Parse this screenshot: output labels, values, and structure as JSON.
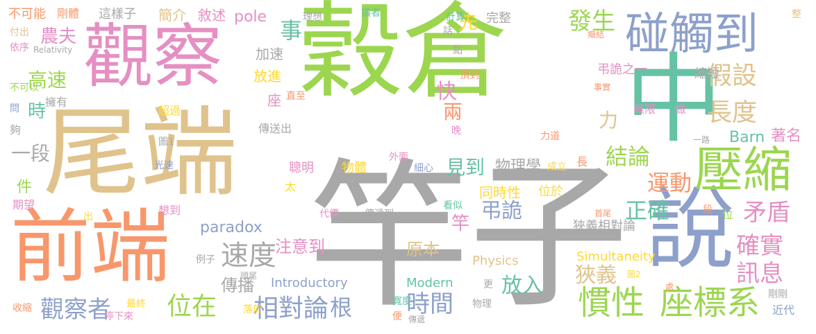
{
  "palette": {
    "green": "#9cd64f",
    "gray": "#a8a8a8",
    "tan": "#e0c38c",
    "pink": "#e58fc3",
    "orange": "#f8976b",
    "teal": "#66c2a5",
    "blue": "#8da0cb",
    "yellow": "#ffd92f"
  },
  "words": [
    {
      "text": "穀倉",
      "color": "green"
    },
    {
      "text": "竿子",
      "color": "gray"
    },
    {
      "text": "尾端",
      "color": "tan"
    },
    {
      "text": "前端",
      "color": "orange"
    },
    {
      "text": "觀察",
      "color": "pink"
    },
    {
      "text": "中",
      "color": "teal"
    },
    {
      "text": "碰觸到",
      "color": "blue"
    },
    {
      "text": "說",
      "color": "blue"
    },
    {
      "text": "壓縮",
      "color": "green"
    },
    {
      "text": "慣性",
      "color": "green"
    },
    {
      "text": "座標系",
      "color": "green"
    },
    {
      "text": "觀察者",
      "color": "blue"
    },
    {
      "text": "位在",
      "color": "green"
    },
    {
      "text": "相對論",
      "color": "blue"
    },
    {
      "text": "時間",
      "color": "blue"
    },
    {
      "text": "速度",
      "color": "gray"
    },
    {
      "text": "傳播",
      "color": "gray"
    },
    {
      "text": "注意到",
      "color": "pink"
    },
    {
      "text": "原本",
      "color": "tan"
    },
    {
      "text": "放入",
      "color": "teal"
    },
    {
      "text": "狹義",
      "color": "tan"
    },
    {
      "text": "根",
      "color": "blue"
    },
    {
      "text": "paradox",
      "color": "blue"
    },
    {
      "text": "pole",
      "color": "pink"
    },
    {
      "text": "高速",
      "color": "green"
    },
    {
      "text": "農夫",
      "color": "pink"
    },
    {
      "text": "時",
      "color": "teal"
    },
    {
      "text": "一段",
      "color": "gray"
    },
    {
      "text": "件",
      "color": "green"
    },
    {
      "text": "事",
      "color": "teal"
    },
    {
      "text": "先",
      "color": "yellow"
    },
    {
      "text": "發生",
      "color": "green"
    },
    {
      "text": "快",
      "color": "pink"
    },
    {
      "text": "兩",
      "color": "orange"
    },
    {
      "text": "假設",
      "color": "tan"
    },
    {
      "text": "長度",
      "color": "tan"
    },
    {
      "text": "力",
      "color": "tan"
    },
    {
      "text": "結論",
      "color": "green"
    },
    {
      "text": "運動",
      "color": "orange"
    },
    {
      "text": "正確",
      "color": "teal"
    },
    {
      "text": "矛盾",
      "color": "pink"
    },
    {
      "text": "確實",
      "color": "pink"
    },
    {
      "text": "訊息",
      "color": "pink"
    },
    {
      "text": "見到",
      "color": "teal"
    },
    {
      "text": "物理學",
      "color": "gray"
    },
    {
      "text": "弔詭",
      "color": "blue"
    },
    {
      "text": "竿",
      "color": "pink"
    },
    {
      "text": "同時性",
      "color": "yellow"
    },
    {
      "text": "位於",
      "color": "yellow"
    },
    {
      "text": "Barn",
      "color": "teal"
    },
    {
      "text": "著名",
      "color": "pink"
    },
    {
      "text": "Physics",
      "color": "tan"
    },
    {
      "text": "Simultaneity",
      "color": "yellow"
    },
    {
      "text": "Introductory",
      "color": "blue"
    },
    {
      "text": "Modern",
      "color": "teal"
    },
    {
      "text": "狹義相對論",
      "color": "gray"
    },
    {
      "text": "弔詭之一",
      "color": "pink"
    },
    {
      "text": "縮短",
      "color": "gray"
    },
    {
      "text": "不可能",
      "color": "orange"
    },
    {
      "text": "剛體",
      "color": "orange"
    },
    {
      "text": "這樣子",
      "color": "gray"
    },
    {
      "text": "簡介",
      "color": "tan"
    },
    {
      "text": "敘述",
      "color": "pink"
    },
    {
      "text": "付出",
      "color": "tan"
    },
    {
      "text": "依序",
      "color": "pink"
    },
    {
      "text": "Relativity",
      "color": "gray"
    },
    {
      "text": "加速",
      "color": "gray"
    },
    {
      "text": "放進",
      "color": "yellow"
    },
    {
      "text": "座",
      "color": "pink"
    },
    {
      "text": "擁有",
      "color": "gray"
    },
    {
      "text": "不可以",
      "color": "green"
    },
    {
      "text": "問",
      "color": "blue"
    },
    {
      "text": "夠",
      "color": "gray"
    },
    {
      "text": "超過",
      "color": "yellow"
    },
    {
      "text": "傳送出",
      "color": "gray"
    },
    {
      "text": "圖1",
      "color": "gray"
    },
    {
      "text": "光速",
      "color": "blue"
    },
    {
      "text": "期望",
      "color": "pink"
    },
    {
      "text": "想到",
      "color": "pink"
    },
    {
      "text": "出",
      "color": "yellow"
    },
    {
      "text": "例子",
      "color": "gray"
    },
    {
      "text": "頭尾",
      "color": "gray"
    },
    {
      "text": "代價",
      "color": "pink"
    },
    {
      "text": "傳遞到",
      "color": "gray"
    },
    {
      "text": "最終",
      "color": "yellow"
    },
    {
      "text": "停下來",
      "color": "pink"
    },
    {
      "text": "收縮",
      "color": "orange"
    },
    {
      "text": "落於",
      "color": "yellow"
    },
    {
      "text": "寬度",
      "color": "teal"
    },
    {
      "text": "便",
      "color": "orange"
    },
    {
      "text": "傳遞",
      "color": "gray"
    },
    {
      "text": "物理",
      "color": "gray"
    },
    {
      "text": "更",
      "color": "gray"
    },
    {
      "text": "看似",
      "color": "teal"
    },
    {
      "text": "聰明",
      "color": "pink"
    },
    {
      "text": "物體",
      "color": "yellow"
    },
    {
      "text": "外面",
      "color": "pink"
    },
    {
      "text": "細心",
      "color": "blue"
    },
    {
      "text": "太",
      "color": "yellow"
    },
    {
      "text": "理想",
      "color": "gray"
    },
    {
      "text": "讀者",
      "color": "teal"
    },
    {
      "text": "計算",
      "color": "teal"
    },
    {
      "text": "完整",
      "color": "gray"
    },
    {
      "text": "話",
      "color": "gray"
    },
    {
      "text": "點",
      "color": "gray"
    },
    {
      "text": "頂到",
      "color": "orange"
    },
    {
      "text": "直至",
      "color": "orange"
    },
    {
      "text": "晚",
      "color": "pink"
    },
    {
      "text": "無限",
      "color": "pink"
    },
    {
      "text": "做",
      "color": "pink"
    },
    {
      "text": "力道",
      "color": "orange"
    },
    {
      "text": "事實",
      "color": "orange"
    },
    {
      "text": "癥結",
      "color": "orange"
    },
    {
      "text": "整",
      "color": "tan"
    },
    {
      "text": "一路",
      "color": "gray"
    },
    {
      "text": "成立",
      "color": "yellow"
    },
    {
      "text": "長",
      "color": "orange"
    },
    {
      "text": "段",
      "color": "orange"
    },
    {
      "text": "位",
      "color": "green"
    },
    {
      "text": "首尾",
      "color": "orange"
    },
    {
      "text": "圖2",
      "color": "yellow"
    },
    {
      "text": "處",
      "color": "orange"
    },
    {
      "text": "剛剛",
      "color": "gray"
    },
    {
      "text": "近代",
      "color": "blue"
    }
  ]
}
